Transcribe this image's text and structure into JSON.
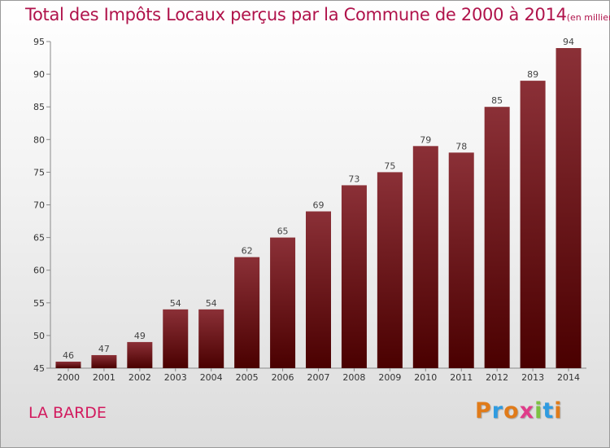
{
  "chart_data": {
    "type": "bar",
    "title": "Total des Impôts Locaux perçus par la Commune de 2000 à 2014",
    "unit_note": "(en milliers d'€)",
    "categories": [
      "2000",
      "2001",
      "2002",
      "2003",
      "2004",
      "2005",
      "2006",
      "2007",
      "2008",
      "2009",
      "2010",
      "2011",
      "2012",
      "2013",
      "2014"
    ],
    "values": [
      46,
      47,
      49,
      54,
      54,
      62,
      65,
      69,
      73,
      75,
      79,
      78,
      85,
      89,
      94
    ],
    "ylim": [
      45,
      95
    ],
    "yticks": [
      45,
      50,
      55,
      60,
      65,
      70,
      75,
      80,
      85,
      90,
      95
    ],
    "xlabel": "",
    "ylabel": "",
    "grid": false,
    "bar_color_top": "#8b3037",
    "bar_color_bottom": "#4a0000"
  },
  "commune": "LA BARDE",
  "logo": {
    "letters": [
      "P",
      "r",
      "o",
      "x",
      "i",
      "t",
      "i"
    ],
    "colors": [
      "#e07b1a",
      "#2f9be0",
      "#e07b1a",
      "#e03c8a",
      "#7cc242",
      "#2f9be0",
      "#e07b1a"
    ]
  }
}
